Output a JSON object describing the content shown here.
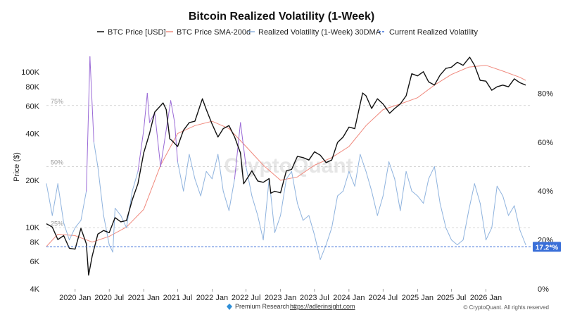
{
  "chart_data": {
    "type": "line",
    "title": "Bitcoin Realized Volatility (1-Week)",
    "ylabel_left": "Price ($)",
    "left_axis": {
      "scale": "log",
      "range": [
        4000,
        150000
      ],
      "ticks": [
        4000,
        6000,
        8000,
        10000,
        20000,
        40000,
        60000,
        80000,
        100000
      ],
      "tick_labels": [
        "4K",
        "6K",
        "8K",
        "10K",
        "20K",
        "40K",
        "60K",
        "80K",
        "100K"
      ]
    },
    "right_axis": {
      "scale": "linear",
      "range": [
        0,
        100
      ],
      "ticks": [
        0,
        20,
        40,
        60,
        80
      ],
      "tick_labels": [
        "0%",
        "20%",
        "40%",
        "60%",
        "80%"
      ]
    },
    "x_axis": {
      "range": [
        "2019-08-01",
        "2026-08-31"
      ],
      "ticks": [
        "2020-01-01",
        "2020-07-01",
        "2021-01-01",
        "2021-07-01",
        "2022-01-01",
        "2022-07-01",
        "2023-01-01",
        "2023-07-01",
        "2024-01-01",
        "2024-07-01",
        "2025-01-01",
        "2025-07-01",
        "2026-01-01"
      ],
      "tick_labels": [
        "2020 Jan",
        "2020 Jul",
        "2021 Jan",
        "2021 Jul",
        "2022 Jan",
        "2022 Jul",
        "2023 Jan",
        "2023 Jul",
        "2024 Jan",
        "2024 Jul",
        "2025 Jan",
        "2025 Jul",
        "2026 Jan"
      ]
    },
    "guides": [
      {
        "label": "75%",
        "value": 75
      },
      {
        "label": "50%",
        "value": 50
      },
      {
        "label": "25%",
        "value": 25
      }
    ],
    "current_value": {
      "label": "17.2*%",
      "value": 17.2
    },
    "grid": false,
    "legend_position": "top",
    "series": [
      {
        "name": "BTC Price [USD]",
        "color": "#111111",
        "axis": "left",
        "style": "solid",
        "points": [
          [
            "2019-08-01",
            10500
          ],
          [
            "2019-09-01",
            10000
          ],
          [
            "2019-10-01",
            8300
          ],
          [
            "2019-11-01",
            8800
          ],
          [
            "2019-12-01",
            7300
          ],
          [
            "2020-01-01",
            7200
          ],
          [
            "2020-02-01",
            9800
          ],
          [
            "2020-03-01",
            7800
          ],
          [
            "2020-03-13",
            4900
          ],
          [
            "2020-04-01",
            6500
          ],
          [
            "2020-05-01",
            9000
          ],
          [
            "2020-06-01",
            9500
          ],
          [
            "2020-07-01",
            9200
          ],
          [
            "2020-08-01",
            11500
          ],
          [
            "2020-09-01",
            10800
          ],
          [
            "2020-10-01",
            11000
          ],
          [
            "2020-11-01",
            15000
          ],
          [
            "2020-12-01",
            19000
          ],
          [
            "2021-01-01",
            30000
          ],
          [
            "2021-02-01",
            40000
          ],
          [
            "2021-03-01",
            55000
          ],
          [
            "2021-04-14",
            63000
          ],
          [
            "2021-05-01",
            57000
          ],
          [
            "2021-05-20",
            37000
          ],
          [
            "2021-06-01",
            36000
          ],
          [
            "2021-07-01",
            33000
          ],
          [
            "2021-08-01",
            42000
          ],
          [
            "2021-09-01",
            47000
          ],
          [
            "2021-10-01",
            48000
          ],
          [
            "2021-11-10",
            67000
          ],
          [
            "2021-12-01",
            57000
          ],
          [
            "2022-01-01",
            46000
          ],
          [
            "2022-02-01",
            38000
          ],
          [
            "2022-03-01",
            43000
          ],
          [
            "2022-04-01",
            45000
          ],
          [
            "2022-05-01",
            38000
          ],
          [
            "2022-06-01",
            30000
          ],
          [
            "2022-06-18",
            19000
          ],
          [
            "2022-07-01",
            20000
          ],
          [
            "2022-08-01",
            23000
          ],
          [
            "2022-09-01",
            19800
          ],
          [
            "2022-10-01",
            19400
          ],
          [
            "2022-11-01",
            20500
          ],
          [
            "2022-11-10",
            16500
          ],
          [
            "2022-12-01",
            17000
          ],
          [
            "2023-01-01",
            16600
          ],
          [
            "2023-02-01",
            23000
          ],
          [
            "2023-03-01",
            23500
          ],
          [
            "2023-04-01",
            28500
          ],
          [
            "2023-05-01",
            28000
          ],
          [
            "2023-06-01",
            27000
          ],
          [
            "2023-07-01",
            30500
          ],
          [
            "2023-08-01",
            29000
          ],
          [
            "2023-09-01",
            26000
          ],
          [
            "2023-10-01",
            27000
          ],
          [
            "2023-11-01",
            35000
          ],
          [
            "2023-12-01",
            38000
          ],
          [
            "2024-01-01",
            44000
          ],
          [
            "2024-02-01",
            43000
          ],
          [
            "2024-03-01",
            62000
          ],
          [
            "2024-03-14",
            73000
          ],
          [
            "2024-04-01",
            70000
          ],
          [
            "2024-05-01",
            58000
          ],
          [
            "2024-06-01",
            67000
          ],
          [
            "2024-07-01",
            62000
          ],
          [
            "2024-08-05",
            54000
          ],
          [
            "2024-09-01",
            58000
          ],
          [
            "2024-10-01",
            62000
          ],
          [
            "2024-11-01",
            70000
          ],
          [
            "2024-12-01",
            97000
          ],
          [
            "2025-01-01",
            94000
          ],
          [
            "2025-02-01",
            100000
          ],
          [
            "2025-03-01",
            86000
          ],
          [
            "2025-04-01",
            82000
          ],
          [
            "2025-05-01",
            95000
          ],
          [
            "2025-06-01",
            105000
          ],
          [
            "2025-07-01",
            107000
          ],
          [
            "2025-08-01",
            115000
          ],
          [
            "2025-09-01",
            110000
          ],
          [
            "2025-10-06",
            124000
          ],
          [
            "2025-11-01",
            110000
          ],
          [
            "2025-12-01",
            88000
          ],
          [
            "2026-01-01",
            87000
          ],
          [
            "2026-02-01",
            76000
          ],
          [
            "2026-03-01",
            80000
          ],
          [
            "2026-04-01",
            82000
          ],
          [
            "2026-05-01",
            80000
          ],
          [
            "2026-06-01",
            90000
          ],
          [
            "2026-07-01",
            85000
          ],
          [
            "2026-08-01",
            82000
          ]
        ]
      },
      {
        "name": "BTC Price SMA-200d",
        "color": "#f08a7e",
        "axis": "left",
        "style": "solid",
        "points": [
          [
            "2019-08-01",
            7500
          ],
          [
            "2019-10-01",
            9000
          ],
          [
            "2020-01-01",
            8800
          ],
          [
            "2020-04-01",
            8000
          ],
          [
            "2020-07-01",
            8700
          ],
          [
            "2020-10-01",
            10000
          ],
          [
            "2021-01-01",
            13000
          ],
          [
            "2021-04-01",
            25000
          ],
          [
            "2021-07-01",
            40000
          ],
          [
            "2021-10-01",
            45000
          ],
          [
            "2022-01-01",
            48000
          ],
          [
            "2022-04-01",
            43000
          ],
          [
            "2022-07-01",
            33000
          ],
          [
            "2022-10-01",
            25000
          ],
          [
            "2023-01-01",
            20000
          ],
          [
            "2023-04-01",
            21000
          ],
          [
            "2023-07-01",
            25000
          ],
          [
            "2023-10-01",
            28000
          ],
          [
            "2024-01-01",
            33000
          ],
          [
            "2024-04-01",
            45000
          ],
          [
            "2024-07-01",
            57000
          ],
          [
            "2024-10-01",
            62000
          ],
          [
            "2025-01-01",
            68000
          ],
          [
            "2025-04-01",
            82000
          ],
          [
            "2025-07-01",
            96000
          ],
          [
            "2025-10-01",
            107000
          ],
          [
            "2026-01-01",
            110000
          ],
          [
            "2026-04-01",
            101000
          ],
          [
            "2026-07-01",
            92000
          ],
          [
            "2026-08-01",
            88000
          ]
        ]
      },
      {
        "name": "Realized Volatility (1-Week) 30DMA",
        "color": "#8fb3de",
        "color_high": "#9a6ad6",
        "axis": "right",
        "style": "solid",
        "points": [
          [
            "2019-08-01",
            43
          ],
          [
            "2019-09-01",
            30
          ],
          [
            "2019-10-01",
            43
          ],
          [
            "2019-11-01",
            27
          ],
          [
            "2019-12-01",
            20
          ],
          [
            "2020-01-01",
            25
          ],
          [
            "2020-02-01",
            28
          ],
          [
            "2020-03-01",
            40
          ],
          [
            "2020-03-20",
            95
          ],
          [
            "2020-04-10",
            60
          ],
          [
            "2020-05-01",
            50
          ],
          [
            "2020-06-01",
            30
          ],
          [
            "2020-07-01",
            18
          ],
          [
            "2020-07-20",
            15
          ],
          [
            "2020-08-01",
            33
          ],
          [
            "2020-09-01",
            30
          ],
          [
            "2020-10-01",
            25
          ],
          [
            "2020-11-01",
            40
          ],
          [
            "2020-12-01",
            48
          ],
          [
            "2021-01-01",
            65
          ],
          [
            "2021-01-20",
            80
          ],
          [
            "2021-02-01",
            68
          ],
          [
            "2021-03-01",
            72
          ],
          [
            "2021-04-01",
            50
          ],
          [
            "2021-05-01",
            65
          ],
          [
            "2021-05-25",
            77
          ],
          [
            "2021-06-15",
            68
          ],
          [
            "2021-07-01",
            52
          ],
          [
            "2021-08-01",
            40
          ],
          [
            "2021-09-01",
            55
          ],
          [
            "2021-10-01",
            45
          ],
          [
            "2021-11-01",
            38
          ],
          [
            "2021-12-01",
            48
          ],
          [
            "2022-01-01",
            45
          ],
          [
            "2022-02-01",
            55
          ],
          [
            "2022-03-01",
            40
          ],
          [
            "2022-04-01",
            32
          ],
          [
            "2022-05-01",
            45
          ],
          [
            "2022-06-01",
            68
          ],
          [
            "2022-07-01",
            50
          ],
          [
            "2022-08-01",
            38
          ],
          [
            "2022-09-01",
            30
          ],
          [
            "2022-10-01",
            20
          ],
          [
            "2022-11-01",
            45
          ],
          [
            "2022-12-01",
            23
          ],
          [
            "2023-01-01",
            30
          ],
          [
            "2023-02-01",
            45
          ],
          [
            "2023-03-01",
            48
          ],
          [
            "2023-04-01",
            35
          ],
          [
            "2023-05-01",
            28
          ],
          [
            "2023-06-01",
            30
          ],
          [
            "2023-07-01",
            22
          ],
          [
            "2023-08-01",
            12
          ],
          [
            "2023-09-01",
            18
          ],
          [
            "2023-10-01",
            25
          ],
          [
            "2023-11-01",
            38
          ],
          [
            "2023-12-01",
            40
          ],
          [
            "2024-01-01",
            48
          ],
          [
            "2024-02-01",
            42
          ],
          [
            "2024-03-01",
            55
          ],
          [
            "2024-04-01",
            48
          ],
          [
            "2024-05-01",
            40
          ],
          [
            "2024-06-01",
            30
          ],
          [
            "2024-07-01",
            38
          ],
          [
            "2024-08-01",
            52
          ],
          [
            "2024-09-01",
            45
          ],
          [
            "2024-10-01",
            32
          ],
          [
            "2024-11-01",
            48
          ],
          [
            "2024-12-01",
            40
          ],
          [
            "2025-01-01",
            38
          ],
          [
            "2025-02-01",
            35
          ],
          [
            "2025-03-01",
            45
          ],
          [
            "2025-04-01",
            50
          ],
          [
            "2025-05-01",
            35
          ],
          [
            "2025-06-01",
            25
          ],
          [
            "2025-07-01",
            20
          ],
          [
            "2025-08-01",
            18
          ],
          [
            "2025-09-01",
            20
          ],
          [
            "2025-10-01",
            32
          ],
          [
            "2025-11-01",
            43
          ],
          [
            "2025-12-01",
            35
          ],
          [
            "2026-01-01",
            20
          ],
          [
            "2026-02-01",
            25
          ],
          [
            "2026-03-01",
            42
          ],
          [
            "2026-04-01",
            38
          ],
          [
            "2026-05-01",
            30
          ],
          [
            "2026-06-01",
            34
          ],
          [
            "2026-07-01",
            24
          ],
          [
            "2026-08-01",
            18
          ]
        ]
      },
      {
        "name": "Current Realized Volatility",
        "color": "#3a6fd8",
        "axis": "right",
        "style": "dashed",
        "value": 17.2
      }
    ]
  },
  "watermark": "CryptoQuant",
  "footer": {
    "icon": "diamond-icon",
    "prefix": "Premium Research →",
    "link": "https://adlerinsight.com",
    "copyright": "© CryptoQuant. All rights reserved"
  }
}
